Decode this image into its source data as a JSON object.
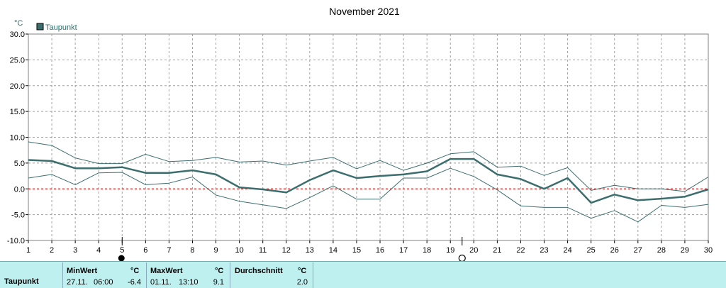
{
  "chart_data": {
    "type": "line",
    "title": "November 2021",
    "ylabel": "°C",
    "ylim": [
      -10,
      30
    ],
    "yticks": [
      30.0,
      25.0,
      20.0,
      15.0,
      10.0,
      5.0,
      0.0,
      -5.0,
      -10.0
    ],
    "yticklabels": [
      "30.0",
      "25.0",
      "20.0",
      "15.0",
      "10.0",
      "5.0",
      "0.0",
      "-5.0",
      "-10.0"
    ],
    "xlim": [
      1,
      30
    ],
    "x": [
      1,
      2,
      3,
      4,
      5,
      6,
      7,
      8,
      9,
      10,
      11,
      12,
      13,
      14,
      15,
      16,
      17,
      18,
      19,
      20,
      21,
      22,
      23,
      24,
      25,
      26,
      27,
      28,
      29,
      30
    ],
    "xticklabels": [
      "1",
      "2",
      "3",
      "4",
      "5",
      "6",
      "7",
      "8",
      "9",
      "10",
      "11",
      "12",
      "13",
      "14",
      "15",
      "16",
      "17",
      "18",
      "19",
      "20",
      "21",
      "22",
      "23",
      "24",
      "25",
      "26",
      "27",
      "28",
      "29",
      "30"
    ],
    "legend": {
      "entries": [
        "Taupunkt"
      ],
      "position": "top-left"
    },
    "grid": true,
    "reference_line": {
      "y": 0,
      "color": "#cc0000"
    },
    "series": [
      {
        "name": "Taupunkt",
        "role": "average",
        "color": "#3c6e6e",
        "values": [
          5.6,
          5.4,
          4.0,
          4.0,
          4.2,
          3.1,
          3.1,
          3.6,
          2.8,
          0.3,
          -0.1,
          -0.7,
          1.7,
          3.6,
          2.1,
          2.5,
          2.8,
          3.4,
          5.8,
          5.8,
          2.8,
          1.9,
          0.0,
          2.1,
          -2.7,
          -1.1,
          -2.2,
          -1.9,
          -1.5,
          -0.1
        ]
      },
      {
        "role": "max",
        "color": "#3c6e6e",
        "values": [
          9.1,
          8.4,
          6.0,
          4.9,
          4.9,
          6.7,
          5.3,
          5.5,
          6.1,
          5.2,
          5.4,
          4.6,
          5.4,
          6.1,
          3.9,
          5.5,
          3.6,
          5.0,
          6.8,
          7.2,
          4.2,
          4.4,
          2.6,
          4.1,
          -0.3,
          0.7,
          0.0,
          0.0,
          -0.5,
          2.3
        ]
      },
      {
        "role": "min",
        "color": "#3c6e6e",
        "values": [
          2.1,
          2.8,
          0.8,
          3.1,
          3.2,
          0.8,
          1.1,
          2.3,
          -1.2,
          -2.4,
          -3.1,
          -3.8,
          -1.7,
          0.6,
          -2.0,
          -2.0,
          2.1,
          2.1,
          4.0,
          2.4,
          -0.2,
          -3.3,
          -3.6,
          -3.6,
          -5.7,
          -4.2,
          -6.4,
          -3.2,
          -3.6,
          -3.0
        ]
      }
    ],
    "moon_markers": [
      {
        "day": 5,
        "phase": "new-moon"
      },
      {
        "day": 19.5,
        "phase": "full-moon"
      }
    ]
  },
  "stats": {
    "row_label": "Taupunkt",
    "min": {
      "label": "MinWert",
      "unit": "°C",
      "date": "27.11.",
      "time": "06:00",
      "value": "-6.4"
    },
    "max": {
      "label": "MaxWert",
      "unit": "°C",
      "date": "01.11.",
      "time": "13:10",
      "value": "9.1"
    },
    "avg": {
      "label": "Durchschnitt",
      "unit": "°C",
      "value": "2.0"
    }
  }
}
